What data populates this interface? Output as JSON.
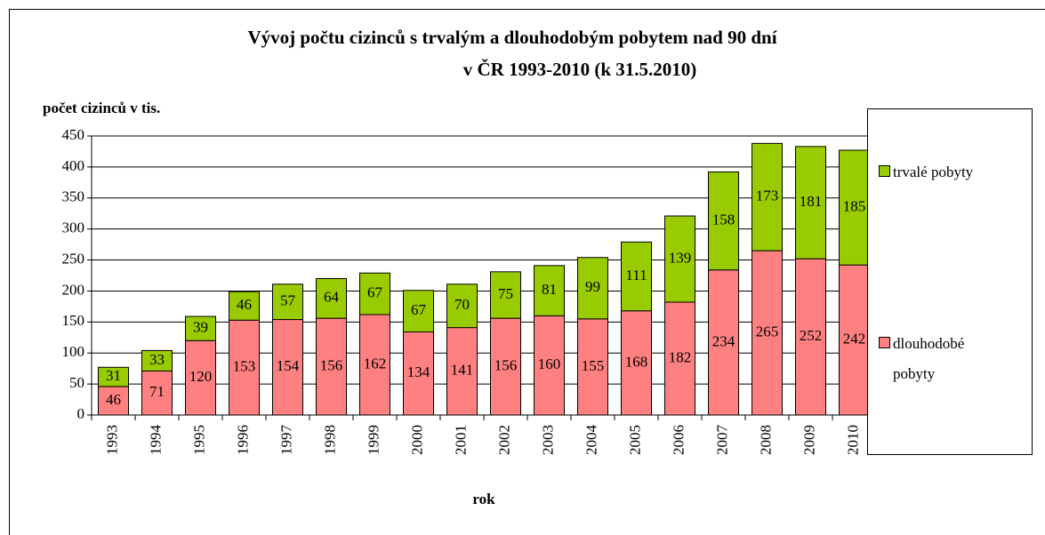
{
  "chart_data": {
    "type": "stacked_bar",
    "title": [
      "Vývoj počtu cizinců s trvalým a dlouhodobým pobytem nad 90 dní",
      "v ČR 1993-2010 (k 31.5.2010)"
    ],
    "y_label": "počet cizinců v tis.",
    "x_label": "rok",
    "categories": [
      "1993",
      "1994",
      "1995",
      "1996",
      "1997",
      "1998",
      "1999",
      "2000",
      "2001",
      "2002",
      "2003",
      "2004",
      "2005",
      "2006",
      "2007",
      "2008",
      "2009",
      "2010"
    ],
    "series": [
      {
        "name": "dlouhodobé pobyty",
        "color": "#ff8080",
        "values": [
          46,
          71,
          120,
          153,
          154,
          156,
          162,
          134,
          141,
          156,
          160,
          155,
          168,
          182,
          234,
          265,
          252,
          242
        ]
      },
      {
        "name": "trvalé pobyty",
        "color": "#99cc00",
        "values": [
          31,
          33,
          39,
          46,
          57,
          64,
          67,
          67,
          70,
          75,
          81,
          99,
          111,
          139,
          158,
          173,
          181,
          185
        ]
      }
    ],
    "ylim": [
      0,
      450
    ],
    "yticks": [
      0,
      50,
      100,
      150,
      200,
      250,
      300,
      350,
      400,
      450
    ],
    "grid": true,
    "legend": "right"
  }
}
